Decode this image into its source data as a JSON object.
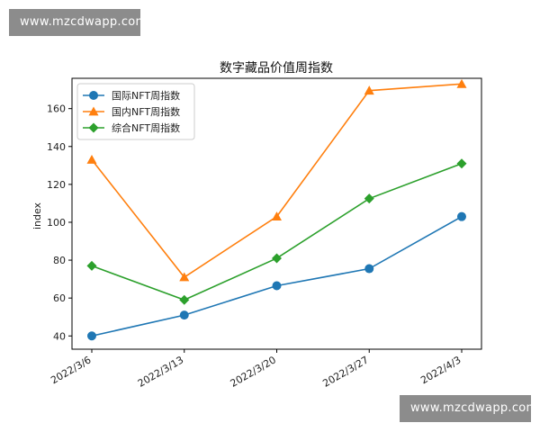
{
  "watermarks": {
    "top": "www.mzcdwapp.com",
    "bottom": "www.mzcdwapp.com"
  },
  "chart_data": {
    "type": "line",
    "title": "数字藏品价值周指数",
    "xlabel": "",
    "ylabel": "index",
    "categories": [
      "2022/3/6",
      "2022/3/13",
      "2022/3/20",
      "2022/3/27",
      "2022/4/3"
    ],
    "ylim": [
      33,
      176
    ],
    "yticks": [
      40,
      60,
      80,
      100,
      120,
      140,
      160
    ],
    "grid": false,
    "legend_position": "top-left",
    "series": [
      {
        "name": "国际NFT周指数",
        "values": [
          40,
          51,
          66.5,
          75.5,
          103
        ],
        "color": "#1f77b4",
        "marker": "circle"
      },
      {
        "name": "国内NFT周指数",
        "values": [
          133,
          71,
          103,
          169.5,
          173
        ],
        "color": "#ff7f0e",
        "marker": "triangle"
      },
      {
        "name": "综合NFT周指数",
        "values": [
          77,
          59,
          81,
          112.5,
          131
        ],
        "color": "#2ca02c",
        "marker": "diamond"
      }
    ]
  }
}
